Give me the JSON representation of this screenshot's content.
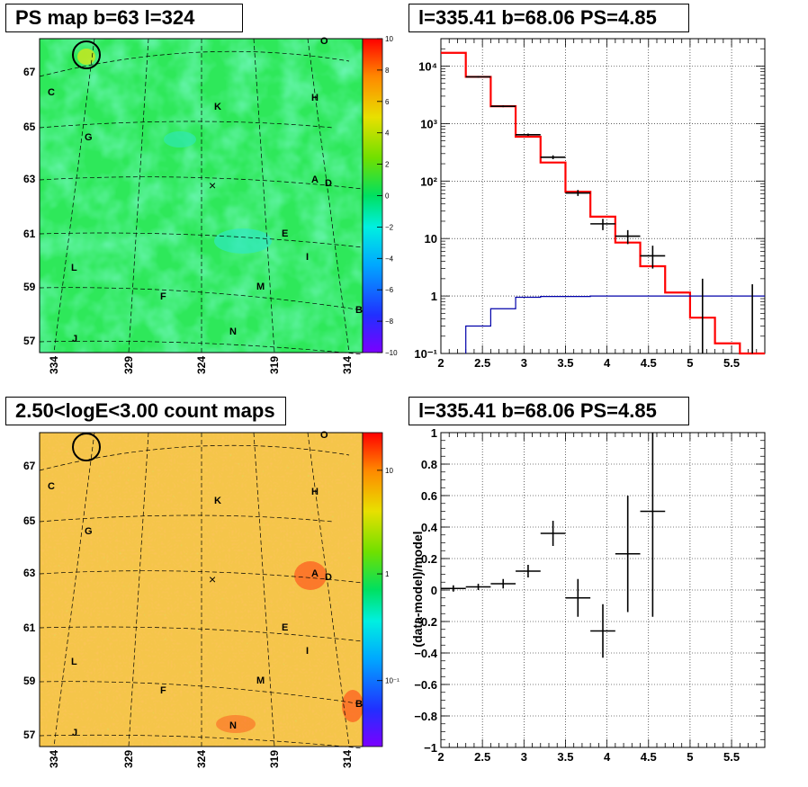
{
  "panels": {
    "ps_map": {
      "title": "PS map b=63 l=324",
      "y_ticks": [
        "67",
        "65",
        "63",
        "61",
        "59",
        "57"
      ],
      "x_ticks": [
        "334",
        "329",
        "324",
        "319",
        "314"
      ],
      "colorbar_ticks": [
        "10",
        "8",
        "6",
        "4",
        "2",
        "0",
        "−2",
        "−4",
        "−6",
        "−8",
        "−10"
      ],
      "source_labels": [
        "O",
        "C",
        "K",
        "H",
        "G",
        "A",
        "D",
        "E",
        "I",
        "L",
        "M",
        "F",
        "B",
        "N",
        "J"
      ],
      "marker": "×"
    },
    "count_map": {
      "title": "2.50<logE<3.00 count maps",
      "y_ticks": [
        "67",
        "65",
        "63",
        "61",
        "59",
        "57"
      ],
      "x_ticks": [
        "334",
        "329",
        "324",
        "319",
        "314"
      ],
      "colorbar_ticks": [
        "10",
        "1",
        "10⁻¹"
      ],
      "source_labels": [
        "O",
        "C",
        "K",
        "H",
        "G",
        "A",
        "D",
        "E",
        "I",
        "L",
        "M",
        "F",
        "B",
        "N",
        "J"
      ],
      "marker": "×"
    },
    "spectrum": {
      "title": "l=335.41 b=68.06 PS=4.85"
    },
    "residual": {
      "title": "l=335.41 b=68.06 PS=4.85"
    }
  },
  "chart_data": [
    {
      "type": "heatmap",
      "title": "PS map b=63 l=324",
      "xlabel": "",
      "ylabel": "",
      "x_ticks": [
        334,
        329,
        324,
        319,
        314
      ],
      "y_ticks": [
        67,
        65,
        63,
        61,
        59,
        57
      ],
      "color_scale": {
        "min": -10,
        "max": 10,
        "ticks": [
          10,
          8,
          6,
          4,
          2,
          0,
          -2,
          -4,
          -6,
          -8,
          -10
        ]
      },
      "sources": [
        "O",
        "C",
        "K",
        "H",
        "G",
        "A",
        "D",
        "E",
        "I",
        "L",
        "M",
        "F",
        "B",
        "N",
        "J"
      ],
      "grid": true
    },
    {
      "type": "heatmap",
      "title": "2.50<logE<3.00 count maps",
      "xlabel": "",
      "ylabel": "",
      "x_ticks": [
        334,
        329,
        324,
        319,
        314
      ],
      "y_ticks": [
        67,
        65,
        63,
        61,
        59,
        57
      ],
      "color_scale": {
        "scale": "log",
        "ticks": [
          10,
          1,
          0.1
        ]
      },
      "sources": [
        "O",
        "C",
        "K",
        "H",
        "G",
        "A",
        "D",
        "E",
        "I",
        "L",
        "M",
        "F",
        "B",
        "N",
        "J"
      ],
      "grid": true
    },
    {
      "type": "line",
      "title": "l=335.41 b=68.06 PS=4.85",
      "xlabel": "",
      "ylabel": "",
      "xlim": [
        2,
        5.9
      ],
      "ylim": [
        0.1,
        30000
      ],
      "yscale": "log",
      "x_ticks": [
        "2",
        "2.5",
        "3",
        "3.5",
        "4",
        "4.5",
        "5",
        "5.5"
      ],
      "y_ticks": [
        {
          "v": 0.1,
          "t": "10⁻¹"
        },
        {
          "v": 1,
          "t": "1"
        },
        {
          "v": 10,
          "t": "10"
        },
        {
          "v": 100,
          "t": "10²"
        },
        {
          "v": 1000,
          "t": "10³"
        },
        {
          "v": 10000,
          "t": "10⁴"
        }
      ],
      "grid": true,
      "data_points": [
        {
          "x": 2.45,
          "y": 6500,
          "xerr": 0.15,
          "ylo": 6300,
          "yhi": 6700
        },
        {
          "x": 2.75,
          "y": 2000,
          "xerr": 0.15,
          "ylo": 1930,
          "yhi": 2070
        },
        {
          "x": 3.05,
          "y": 640,
          "xerr": 0.15,
          "ylo": 610,
          "yhi": 670
        },
        {
          "x": 3.35,
          "y": 260,
          "xerr": 0.15,
          "ylo": 240,
          "yhi": 280
        },
        {
          "x": 3.65,
          "y": 62,
          "xerr": 0.15,
          "ylo": 55,
          "yhi": 70
        },
        {
          "x": 3.95,
          "y": 18,
          "xerr": 0.15,
          "ylo": 14,
          "yhi": 22
        },
        {
          "x": 4.25,
          "y": 11,
          "xerr": 0.15,
          "ylo": 8,
          "yhi": 14
        },
        {
          "x": 4.55,
          "y": 5,
          "xerr": 0.15,
          "ylo": 3,
          "yhi": 7.5
        },
        {
          "x": 5.15,
          "y": 0.1,
          "xerr": 0,
          "ylo": 0.1,
          "yhi": 2
        },
        {
          "x": 5.75,
          "y": 0.1,
          "xerr": 0,
          "ylo": 0.1,
          "yhi": 1.6
        }
      ],
      "series": [
        {
          "color": "#ff0000",
          "edges": [
            2.0,
            2.3,
            2.6,
            2.9,
            3.2,
            3.5,
            3.8,
            4.1,
            4.4,
            4.7,
            5.0,
            5.3,
            5.6,
            5.9
          ],
          "values": [
            17000,
            6500,
            2000,
            590,
            210,
            65,
            24,
            8.5,
            3.3,
            1.15,
            0.42,
            0.15,
            0.055
          ]
        },
        {
          "color": "#0000aa",
          "edges": [
            2.3,
            2.6,
            2.9,
            3.2,
            3.5,
            3.8,
            4.1,
            4.4,
            4.7,
            5.0,
            5.3,
            5.6,
            5.9
          ],
          "values": [
            0.3,
            0.6,
            0.95,
            0.98,
            0.98,
            1.0,
            1.0,
            1.0,
            1.0,
            1.0,
            1.0,
            1.0
          ]
        }
      ]
    },
    {
      "type": "scatter",
      "title": "l=335.41 b=68.06 PS=4.85",
      "xlabel": "",
      "ylabel": "(data-model)/model",
      "xlim": [
        2,
        5.9
      ],
      "ylim": [
        -1,
        1
      ],
      "x_ticks": [
        "2",
        "2.5",
        "3",
        "3.5",
        "4",
        "4.5",
        "5",
        "5.5"
      ],
      "y_ticks": [
        {
          "v": 1,
          "t": "1"
        },
        {
          "v": 0.8,
          "t": "0.8"
        },
        {
          "v": 0.6,
          "t": "0.6"
        },
        {
          "v": 0.4,
          "t": "0.4"
        },
        {
          "v": 0.2,
          "t": "0.2"
        },
        {
          "v": 0,
          "t": "0"
        },
        {
          "v": -0.2,
          "t": "−0.2"
        },
        {
          "v": -0.4,
          "t": "−0.4"
        },
        {
          "v": -0.6,
          "t": "−0.6"
        },
        {
          "v": -0.8,
          "t": "−0.8"
        },
        {
          "v": -1,
          "t": "−1"
        }
      ],
      "grid": true,
      "data_points": [
        {
          "x": 2.15,
          "y": 0.01,
          "xerr": 0.15,
          "ylo": -0.01,
          "yhi": 0.03
        },
        {
          "x": 2.45,
          "y": 0.02,
          "xerr": 0.15,
          "ylo": 0.0,
          "yhi": 0.04
        },
        {
          "x": 2.75,
          "y": 0.04,
          "xerr": 0.15,
          "ylo": 0.01,
          "yhi": 0.07
        },
        {
          "x": 3.05,
          "y": 0.12,
          "xerr": 0.15,
          "ylo": 0.08,
          "yhi": 0.16
        },
        {
          "x": 3.35,
          "y": 0.36,
          "xerr": 0.15,
          "ylo": 0.28,
          "yhi": 0.44
        },
        {
          "x": 3.65,
          "y": -0.05,
          "xerr": 0.15,
          "ylo": -0.17,
          "yhi": 0.07
        },
        {
          "x": 3.95,
          "y": -0.26,
          "xerr": 0.15,
          "ylo": -0.43,
          "yhi": -0.09
        },
        {
          "x": 4.25,
          "y": 0.23,
          "xerr": 0.15,
          "ylo": -0.14,
          "yhi": 0.6
        },
        {
          "x": 4.55,
          "y": 0.5,
          "xerr": 0.15,
          "ylo": -0.17,
          "yhi": 1.0
        }
      ]
    }
  ]
}
